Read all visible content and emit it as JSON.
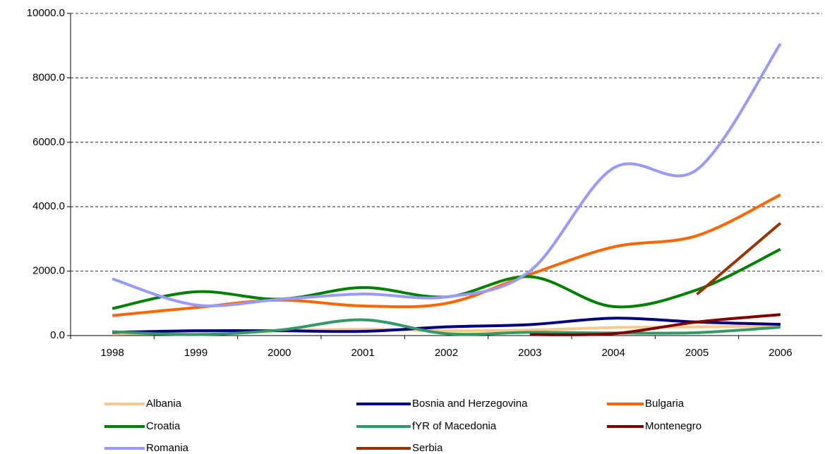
{
  "chart_data": {
    "type": "line",
    "categories": [
      "1998",
      "1999",
      "2000",
      "2001",
      "2002",
      "2003",
      "2004",
      "2005",
      "2006"
    ],
    "series": [
      {
        "name": "Albania",
        "color": "#fbc98e",
        "values": [
          50,
          80,
          150,
          200,
          150,
          170,
          250,
          270,
          300
        ]
      },
      {
        "name": "Bosnia and Herzegovina",
        "color": "#000080",
        "values": [
          100,
          150,
          150,
          130,
          270,
          340,
          540,
          420,
          350
        ]
      },
      {
        "name": "Bulgaria",
        "color": "#ff6600",
        "values": [
          620,
          870,
          1100,
          920,
          1000,
          1900,
          2750,
          3100,
          4370
        ]
      },
      {
        "name": "Croatia",
        "color": "#008000",
        "values": [
          840,
          1360,
          1130,
          1490,
          1200,
          1830,
          900,
          1420,
          2680
        ]
      },
      {
        "name": "fYR of Macedonia",
        "color": "#339966",
        "values": [
          120,
          30,
          170,
          490,
          60,
          100,
          80,
          90,
          260
        ]
      },
      {
        "name": "Montenegro",
        "color": "#800000",
        "values": [
          null,
          null,
          null,
          null,
          null,
          30,
          60,
          420,
          650
        ]
      },
      {
        "name": "Romania",
        "color": "#9999ff",
        "values": [
          1760,
          950,
          1120,
          1290,
          1200,
          2000,
          5200,
          5150,
          9060
        ]
      },
      {
        "name": "Serbia",
        "color": "#993300",
        "values": [
          null,
          null,
          null,
          null,
          null,
          null,
          null,
          1280,
          3490
        ]
      }
    ],
    "ylim": [
      0,
      10000
    ],
    "yticks": [
      {
        "value": 0,
        "label": "0.0"
      },
      {
        "value": 2000,
        "label": "2000.0"
      },
      {
        "value": 4000,
        "label": "4000.0"
      },
      {
        "value": 6000,
        "label": "6000.0"
      },
      {
        "value": 8000,
        "label": "8000.0"
      },
      {
        "value": 10000,
        "label": "10000.0"
      }
    ],
    "grid": true
  }
}
